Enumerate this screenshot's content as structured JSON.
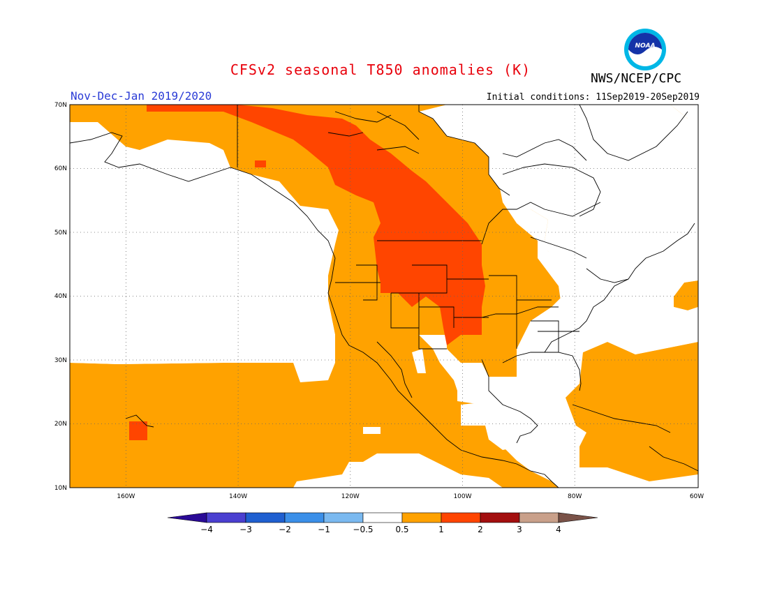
{
  "header": {
    "title": "CFSv2 seasonal T850 anomalies (K)",
    "agency": "NWS/NCEP/CPC",
    "period": "Nov-Dec-Jan 2019/2020",
    "initial_conditions": "Initial conditions: 11Sep2019-20Sep2019",
    "logo_text": "NOAA"
  },
  "map": {
    "lon_range": [
      -172,
      -60
    ],
    "lat_range": [
      10,
      70
    ],
    "lat_labels": [
      "10N",
      "20N",
      "30N",
      "40N",
      "50N",
      "60N",
      "70N"
    ],
    "lon_labels": [
      "160W",
      "140W",
      "120W",
      "100W",
      "80W",
      "60W"
    ],
    "gridlines": "dotted"
  },
  "colorbar": {
    "labels": [
      "−4",
      "−3",
      "−2",
      "−1",
      "−0.5",
      "0.5",
      "1",
      "2",
      "3",
      "4"
    ],
    "colors": [
      "#2a0a96",
      "#4a3fd0",
      "#1f5fd0",
      "#3b8fe8",
      "#7ab9f0",
      "#ffffff",
      "#ffa200",
      "#ff4500",
      "#a30f0f",
      "#c9a08a",
      "#7a5248"
    ]
  },
  "colors": {
    "positive_0_5_to_1": "#ffa200",
    "positive_1_to_2": "#ff4500",
    "neutral": "#ffffff",
    "coastline": "#000000"
  }
}
